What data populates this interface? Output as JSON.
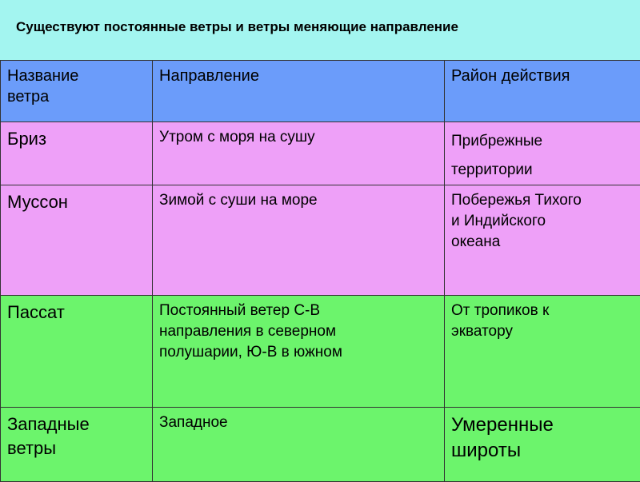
{
  "header": {
    "title": "Существуют постоянные ветры и ветры меняющие направление"
  },
  "table": {
    "header": [
      [
        "Название",
        "ветра"
      ],
      [
        "Направление"
      ],
      [
        "Район действия"
      ]
    ],
    "rows": [
      [
        [
          "Бриз"
        ],
        [
          "Утром с моря на сушу"
        ],
        [
          "Прибрежные",
          "территории"
        ]
      ],
      [
        [
          "Муссон"
        ],
        [
          "Зимой с суши на море"
        ],
        [
          "Побережья Тихого",
          "и Индийского",
          "океана"
        ]
      ],
      [
        [
          "Пассат"
        ],
        [
          "Постоянный ветер С-В",
          "направления в северном",
          "полушарии,  Ю-В в южном"
        ],
        [
          "От тропиков к",
          "экватору"
        ]
      ],
      [
        [
          "Западные",
          "ветры"
        ],
        [
          "Западное"
        ],
        [
          "Умеренные",
          "широты"
        ]
      ]
    ]
  }
}
